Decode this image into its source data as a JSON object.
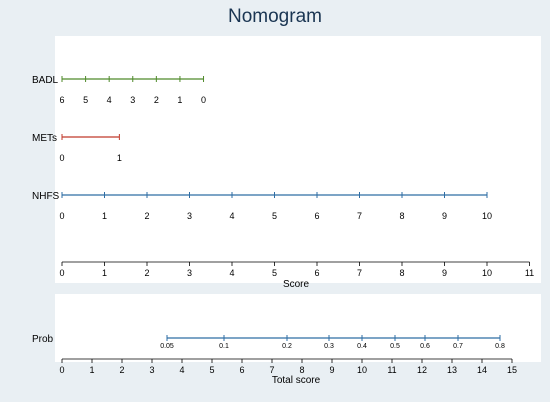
{
  "chart_data": [
    {
      "type": "nomogram",
      "title": "Nomogram",
      "xlabel": "Score",
      "xlim": [
        0,
        11
      ],
      "ticks": [
        0,
        1,
        2,
        3,
        4,
        5,
        6,
        7,
        8,
        9,
        10,
        11
      ],
      "variables": [
        {
          "name": "BADL",
          "color": "#4f8a2a",
          "values": [
            6,
            5,
            4,
            3,
            2,
            1,
            0
          ],
          "scores": [
            0,
            0.555,
            1.11,
            1.665,
            2.22,
            2.775,
            3.33
          ]
        },
        {
          "name": "METs",
          "color": "#c0392b",
          "values": [
            0,
            1
          ],
          "scores": [
            0,
            1.35
          ]
        },
        {
          "name": "NHFS",
          "color": "#2e6da4",
          "values": [
            0,
            1,
            2,
            3,
            4,
            5,
            6,
            7,
            8,
            9,
            10
          ],
          "scores": [
            0,
            1,
            2,
            3,
            4,
            5,
            6,
            7,
            8,
            9,
            10
          ]
        }
      ]
    },
    {
      "type": "nomogram-scale",
      "xlabel": "Total score",
      "xlim": [
        0,
        15
      ],
      "ticks": [
        0,
        1,
        2,
        3,
        4,
        5,
        6,
        7,
        8,
        9,
        10,
        11,
        12,
        13,
        14,
        15
      ],
      "variable": {
        "name": "Prob",
        "color": "#2e6da4",
        "labels": [
          "0.05",
          "0.1",
          "0.2",
          "0.3",
          "0.4",
          "0.5",
          "0.6",
          "0.7",
          "0.8"
        ],
        "total_scores": [
          3.5,
          5.4,
          7.5,
          8.9,
          10.0,
          11.1,
          12.1,
          13.2,
          14.6
        ]
      }
    }
  ]
}
